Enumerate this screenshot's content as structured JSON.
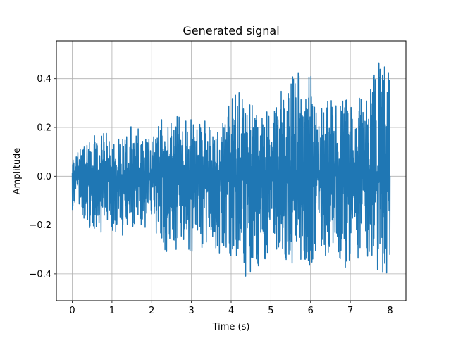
{
  "chart_data": {
    "type": "line",
    "title": "Generated signal",
    "xlabel": "Time (s)",
    "ylabel": "Amplitude",
    "xlim": [
      -0.4,
      8.4
    ],
    "ylim": [
      -0.51,
      0.555
    ],
    "grid": true,
    "color": "#1f77b4",
    "x_ticks": [
      0,
      1,
      2,
      3,
      4,
      5,
      6,
      7,
      8
    ],
    "x_tick_labels": [
      "0",
      "1",
      "2",
      "3",
      "4",
      "5",
      "6",
      "7",
      "8"
    ],
    "y_ticks": [
      -0.4,
      -0.2,
      0.0,
      0.2,
      0.4
    ],
    "y_tick_labels": [
      "−0.4",
      "−0.2",
      "0.0",
      "0.2",
      "0.4"
    ],
    "series": [
      {
        "x": [
          0,
          0.2,
          0.4,
          0.6,
          0.8,
          1.0,
          1.2,
          1.4,
          1.6,
          1.8,
          2.0,
          2.2,
          2.4,
          2.6,
          2.8,
          3.0,
          3.2,
          3.4,
          3.6,
          3.8,
          4.0,
          4.2,
          4.4,
          4.6,
          4.8,
          5.0,
          5.2,
          5.4,
          5.6,
          5.8,
          6.0,
          6.2,
          6.4,
          6.6,
          6.8,
          7.0,
          7.2,
          7.4,
          7.6,
          7.8,
          8.0
        ],
        "y_max": [
          0.08,
          0.12,
          0.18,
          0.16,
          0.19,
          0.15,
          0.17,
          0.2,
          0.21,
          0.19,
          0.17,
          0.24,
          0.23,
          0.26,
          0.25,
          0.24,
          0.21,
          0.25,
          0.19,
          0.28,
          0.32,
          0.38,
          0.3,
          0.33,
          0.23,
          0.32,
          0.37,
          0.29,
          0.52,
          0.36,
          0.44,
          0.3,
          0.34,
          0.31,
          0.33,
          0.34,
          0.32,
          0.33,
          0.46,
          0.49,
          0.48
        ],
        "y_min": [
          -0.14,
          -0.15,
          -0.21,
          -0.23,
          -0.22,
          -0.23,
          -0.27,
          -0.2,
          -0.24,
          -0.24,
          -0.21,
          -0.29,
          -0.32,
          -0.33,
          -0.31,
          -0.35,
          -0.27,
          -0.33,
          -0.35,
          -0.37,
          -0.32,
          -0.36,
          -0.42,
          -0.44,
          -0.45,
          -0.34,
          -0.29,
          -0.36,
          -0.38,
          -0.35,
          -0.37,
          -0.37,
          -0.33,
          -0.36,
          -0.38,
          -0.36,
          -0.35,
          -0.34,
          -0.37,
          -0.42,
          -0.43
        ]
      }
    ]
  }
}
